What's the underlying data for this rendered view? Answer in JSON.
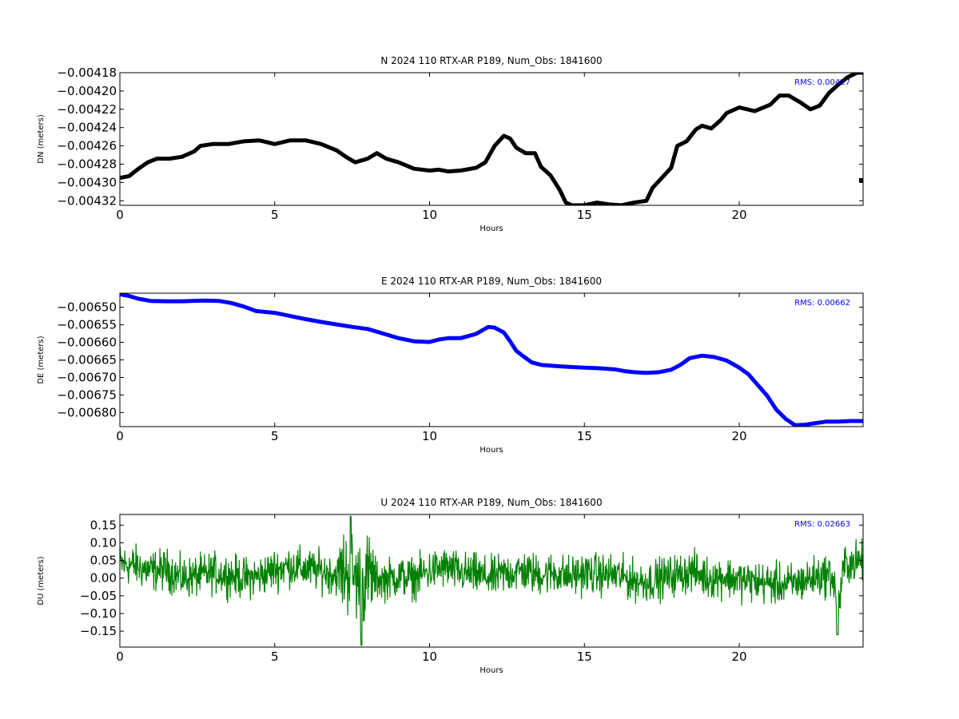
{
  "chart_data": [
    {
      "type": "line",
      "title": "N 2024 110 RTX-AR  P189, Num_Obs: 1841600",
      "xlabel": "Hours",
      "ylabel": "DN (meters)",
      "xlim": [
        0,
        24
      ],
      "ylim": [
        -0.004325,
        -0.00418
      ],
      "xticks": [
        0,
        5,
        10,
        15,
        20
      ],
      "xtick_labels": [
        "0",
        "5",
        "10",
        "15",
        "20"
      ],
      "yticks": [
        -0.00418,
        -0.0042,
        -0.00422,
        -0.00424,
        -0.00426,
        -0.00428,
        -0.0043,
        -0.00432
      ],
      "ytick_labels": [
        "−0.00418",
        "−0.00420",
        "−0.00422",
        "−0.00424",
        "−0.00426",
        "−0.00428",
        "−0.00430",
        "−0.00432"
      ],
      "annotation": "RMS:  0.00427",
      "grid": false,
      "series": [
        {
          "color": "#000000",
          "x": [
            0,
            0.3,
            0.6,
            0.9,
            1.2,
            1.6,
            2,
            2.4,
            2.6,
            3,
            3.5,
            4,
            4.5,
            5,
            5.5,
            6,
            6.5,
            7,
            7.3,
            7.6,
            8,
            8.3,
            8.6,
            9,
            9.5,
            10,
            10.3,
            10.6,
            11,
            11.5,
            11.8,
            12.1,
            12.4,
            12.6,
            12.8,
            13.1,
            13.4,
            13.6,
            13.9,
            14.2,
            14.4,
            14.6,
            15,
            15.4,
            15.8,
            16.2,
            16.6,
            17,
            17.2,
            17.5,
            17.8,
            18,
            18.3,
            18.6,
            18.8,
            19.1,
            19.4,
            19.6,
            20,
            20.5,
            21,
            21.3,
            21.6,
            22,
            22.3,
            22.6,
            22.9,
            23.2,
            23.5,
            23.8,
            24
          ],
          "y": [
            -0.004295,
            -0.004293,
            -0.004285,
            -0.004278,
            -0.004274,
            -0.004274,
            -0.004272,
            -0.004266,
            -0.00426,
            -0.004258,
            -0.004258,
            -0.004255,
            -0.004254,
            -0.004258,
            -0.004254,
            -0.004254,
            -0.004258,
            -0.004265,
            -0.004272,
            -0.004278,
            -0.004274,
            -0.004268,
            -0.004274,
            -0.004278,
            -0.004285,
            -0.004287,
            -0.004286,
            -0.004288,
            -0.004287,
            -0.004284,
            -0.004278,
            -0.00426,
            -0.004249,
            -0.004252,
            -0.004262,
            -0.004268,
            -0.004268,
            -0.004283,
            -0.004292,
            -0.004308,
            -0.004322,
            -0.004325,
            -0.004325,
            -0.004322,
            -0.004324,
            -0.004325,
            -0.004322,
            -0.00432,
            -0.004306,
            -0.004295,
            -0.004284,
            -0.00426,
            -0.004255,
            -0.004242,
            -0.004238,
            -0.004241,
            -0.004232,
            -0.004224,
            -0.004218,
            -0.004222,
            -0.004215,
            -0.004205,
            -0.004205,
            -0.004213,
            -0.00422,
            -0.004216,
            -0.004202,
            -0.004193,
            -0.004185,
            -0.00418,
            -0.00418
          ]
        }
      ]
    },
    {
      "type": "line",
      "title": "E 2024 110 RTX-AR  P189, Num_Obs: 1841600",
      "xlabel": "Hours",
      "ylabel": "DE (meters)",
      "xlim": [
        0,
        24
      ],
      "ylim": [
        -0.00684,
        -0.00646
      ],
      "xticks": [
        0,
        5,
        10,
        15,
        20
      ],
      "xtick_labels": [
        "0",
        "5",
        "10",
        "15",
        "20"
      ],
      "yticks": [
        -0.0065,
        -0.00655,
        -0.0066,
        -0.00665,
        -0.0067,
        -0.00675,
        -0.0068
      ],
      "ytick_labels": [
        "−0.00650",
        "−0.00655",
        "−0.00660",
        "−0.00665",
        "−0.00670",
        "−0.00675",
        "−0.00680"
      ],
      "annotation": "RMS:  0.00662",
      "grid": false,
      "series": [
        {
          "color": "#0000ff",
          "x": [
            0,
            0.3,
            0.6,
            1,
            1.5,
            2,
            2.3,
            2.8,
            3.2,
            3.6,
            4,
            4.4,
            5,
            5.5,
            6,
            6.5,
            7,
            7.5,
            8,
            8.5,
            9,
            9.5,
            10,
            10.3,
            10.6,
            11,
            11.5,
            11.9,
            12.1,
            12.4,
            12.6,
            12.8,
            13,
            13.3,
            13.6,
            14,
            14.5,
            15,
            15.5,
            16,
            16.3,
            16.6,
            17,
            17.4,
            17.8,
            18.1,
            18.4,
            18.8,
            19.2,
            19.6,
            20,
            20.3,
            20.6,
            20.9,
            21.2,
            21.5,
            21.8,
            22.1,
            22.4,
            22.8,
            23.2,
            23.6,
            24
          ],
          "y": [
            -0.006463,
            -0.006468,
            -0.006476,
            -0.006482,
            -0.006483,
            -0.006483,
            -0.006482,
            -0.006481,
            -0.006482,
            -0.006488,
            -0.006498,
            -0.006511,
            -0.006516,
            -0.006525,
            -0.006534,
            -0.006542,
            -0.006549,
            -0.006556,
            -0.006562,
            -0.006575,
            -0.006588,
            -0.006597,
            -0.006599,
            -0.006592,
            -0.006588,
            -0.006588,
            -0.006576,
            -0.006556,
            -0.006558,
            -0.006572,
            -0.006597,
            -0.006624,
            -0.006638,
            -0.006657,
            -0.006664,
            -0.006667,
            -0.00667,
            -0.006672,
            -0.006674,
            -0.006677,
            -0.006682,
            -0.006685,
            -0.006687,
            -0.006685,
            -0.006678,
            -0.006664,
            -0.006645,
            -0.006638,
            -0.006642,
            -0.006652,
            -0.006672,
            -0.006691,
            -0.006722,
            -0.006752,
            -0.006792,
            -0.006818,
            -0.006836,
            -0.006835,
            -0.006831,
            -0.006826,
            -0.006826,
            -0.006824,
            -0.006824
          ]
        }
      ]
    },
    {
      "type": "line",
      "title": "U 2024 110 RTX-AR  P189, Num_Obs: 1841600",
      "xlabel": "Hours",
      "ylabel": "DU (meters)",
      "xlim": [
        0,
        24
      ],
      "ylim": [
        -0.195,
        0.18
      ],
      "xticks": [
        0,
        5,
        10,
        15,
        20
      ],
      "xtick_labels": [
        "0",
        "5",
        "10",
        "15",
        "20"
      ],
      "yticks": [
        0.15,
        0.1,
        0.05,
        0.0,
        -0.05,
        -0.1,
        -0.15
      ],
      "ytick_labels": [
        "0.15",
        "0.10",
        "0.05",
        "0.00",
        "−0.05",
        "−0.10",
        "−0.15"
      ],
      "annotation": "RMS:  0.02663",
      "grid": false,
      "series": [
        {
          "color": "#008000",
          "x": [
            0,
            0.5,
            1,
            1.5,
            2,
            2.5,
            3,
            3.5,
            4,
            4.5,
            5,
            5.5,
            6,
            6.5,
            7,
            7.3,
            7.5,
            7.8,
            8,
            8.5,
            9,
            9.5,
            10,
            10.5,
            11,
            11.5,
            12,
            12.5,
            13,
            13.5,
            14,
            14.5,
            15,
            15.5,
            16,
            16.5,
            17,
            17.5,
            18,
            18.5,
            19,
            19.5,
            20,
            20.5,
            21,
            21.5,
            22,
            22.5,
            23,
            23.2,
            23.4,
            23.7,
            24
          ],
          "y": [
            0.04,
            0.035,
            0.02,
            0.025,
            0.0,
            0.005,
            0.015,
            0.01,
            0.0,
            0.005,
            0.025,
            0.035,
            0.025,
            0.02,
            0.01,
            0.02,
            0.015,
            -0.02,
            0.005,
            -0.005,
            0.005,
            0.0,
            0.02,
            0.03,
            0.015,
            0.01,
            0.0,
            0.015,
            0.02,
            0.01,
            0.015,
            0.005,
            0.015,
            0.01,
            0.01,
            -0.005,
            -0.01,
            0.0,
            0.01,
            0.02,
            0.0,
            0.005,
            -0.005,
            -0.01,
            -0.015,
            -0.02,
            -0.01,
            0.005,
            0.01,
            -0.09,
            0.04,
            0.045,
            0.05
          ]
        }
      ]
    }
  ]
}
